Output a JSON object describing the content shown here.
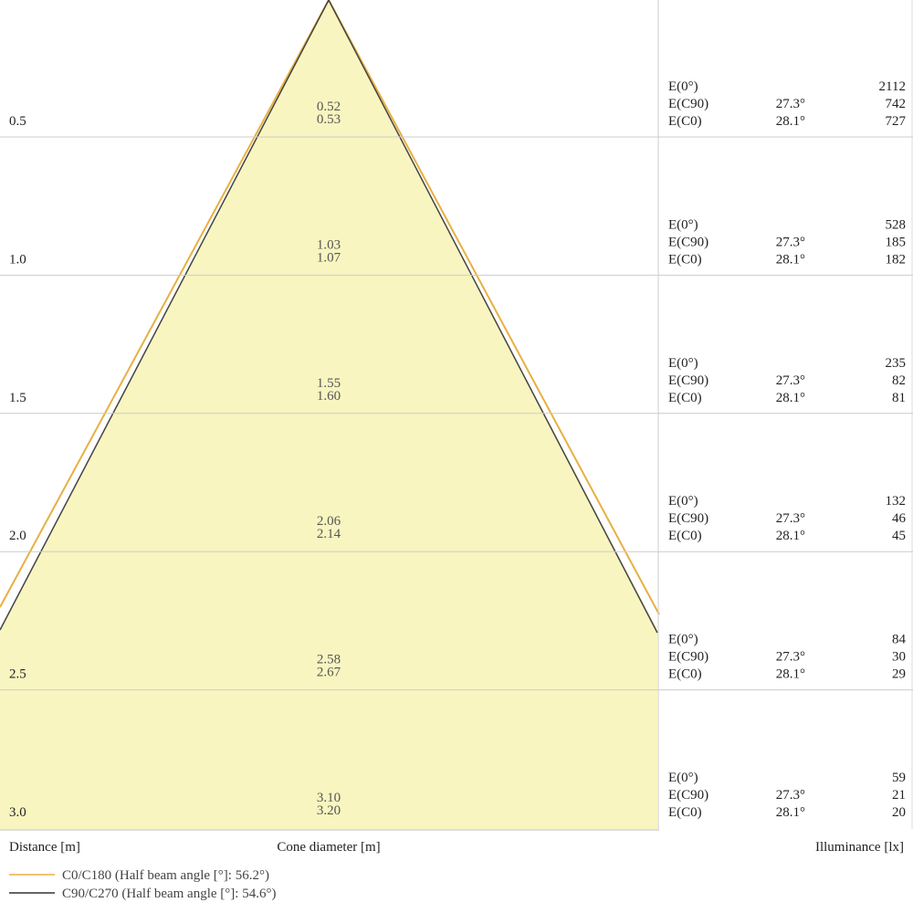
{
  "axis_labels": {
    "distance": "Distance [m]",
    "cone": "Cone diameter [m]",
    "illuminance": "Illuminance [lx]"
  },
  "row_labels": {
    "e0": "E(0°)",
    "ec90": "E(C90)",
    "ec0": "E(C0)"
  },
  "angles": {
    "c90": "27.3°",
    "c0": "28.1°"
  },
  "rows": [
    {
      "distance": "0.5",
      "cone_c90": "0.52",
      "cone_c0": "0.53",
      "e0": "2112",
      "ec90": "742",
      "ec0": "727"
    },
    {
      "distance": "1.0",
      "cone_c90": "1.03",
      "cone_c0": "1.07",
      "e0": "528",
      "ec90": "185",
      "ec0": "182"
    },
    {
      "distance": "1.5",
      "cone_c90": "1.55",
      "cone_c0": "1.60",
      "e0": "235",
      "ec90": "82",
      "ec0": "81"
    },
    {
      "distance": "2.0",
      "cone_c90": "2.06",
      "cone_c0": "2.14",
      "e0": "132",
      "ec90": "46",
      "ec0": "45"
    },
    {
      "distance": "2.5",
      "cone_c90": "2.58",
      "cone_c0": "2.67",
      "e0": "84",
      "ec90": "30",
      "ec0": "29"
    },
    {
      "distance": "3.0",
      "cone_c90": "3.10",
      "cone_c0": "3.20",
      "e0": "59",
      "ec90": "21",
      "ec0": "20"
    }
  ],
  "legend": [
    {
      "name": "C0/C180 (Half beam angle [°]: 56.2°)",
      "color": "#e8b040"
    },
    {
      "name": "C90/C270 (Half beam angle [°]: 54.6°)",
      "color": "#333333"
    }
  ]
}
